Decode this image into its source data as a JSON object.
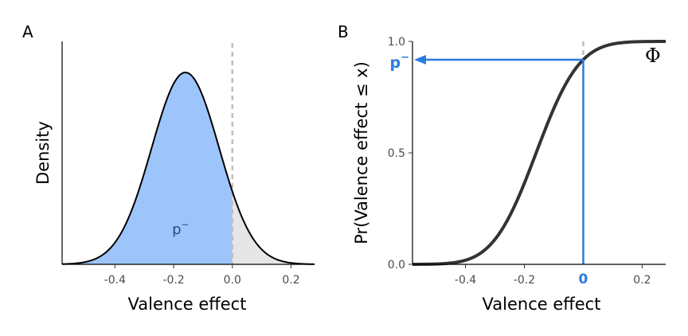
{
  "chart_data": [
    {
      "panel": "A",
      "type": "area",
      "xlabel": "Valence effect",
      "ylabel": "Density",
      "xlim": [
        -0.58,
        0.28
      ],
      "x_ticks": [
        -0.4,
        -0.2,
        0.0,
        0.2
      ],
      "x_tick_labels": [
        "-0.4",
        "-0.2",
        "0.0",
        "0.2"
      ],
      "distribution": {
        "family": "normal",
        "mean": -0.16,
        "sd": 0.115
      },
      "threshold": 0.0,
      "shaded_region_label": "p",
      "shaded_region_superscript": "−",
      "colors": {
        "below_threshold": "#9ec5fb",
        "above_threshold": "#e6e6e6",
        "curve": "#000000",
        "threshold_line": "#bdbdbd",
        "region_label": "#1f4e8f"
      },
      "grid": false
    },
    {
      "panel": "B",
      "type": "line",
      "xlabel": "Valence effect",
      "ylabel": "Pr(Valence effect ≤ x)",
      "xlim": [
        -0.58,
        0.28
      ],
      "ylim": [
        0,
        1
      ],
      "x_ticks": [
        -0.4,
        -0.2,
        0.2
      ],
      "x_tick_labels": [
        "-0.4",
        "-0.2",
        "0.2"
      ],
      "y_ticks": [
        0.0,
        0.5,
        1.0
      ],
      "y_tick_labels": [
        "0.0",
        "0.5",
        "1.0"
      ],
      "distribution": {
        "family": "normal_cdf",
        "mean": -0.16,
        "sd": 0.115
      },
      "highlight_x": 0,
      "highlight_x_label": "0",
      "highlight_y_label": "p",
      "highlight_y_superscript": "−",
      "curve_label": "Φ",
      "colors": {
        "curve": "#333333",
        "highlight": "#2a7be4",
        "threshold_line": "#bdbdbd"
      },
      "grid": false
    }
  ],
  "panel_tags": [
    "A",
    "B"
  ]
}
